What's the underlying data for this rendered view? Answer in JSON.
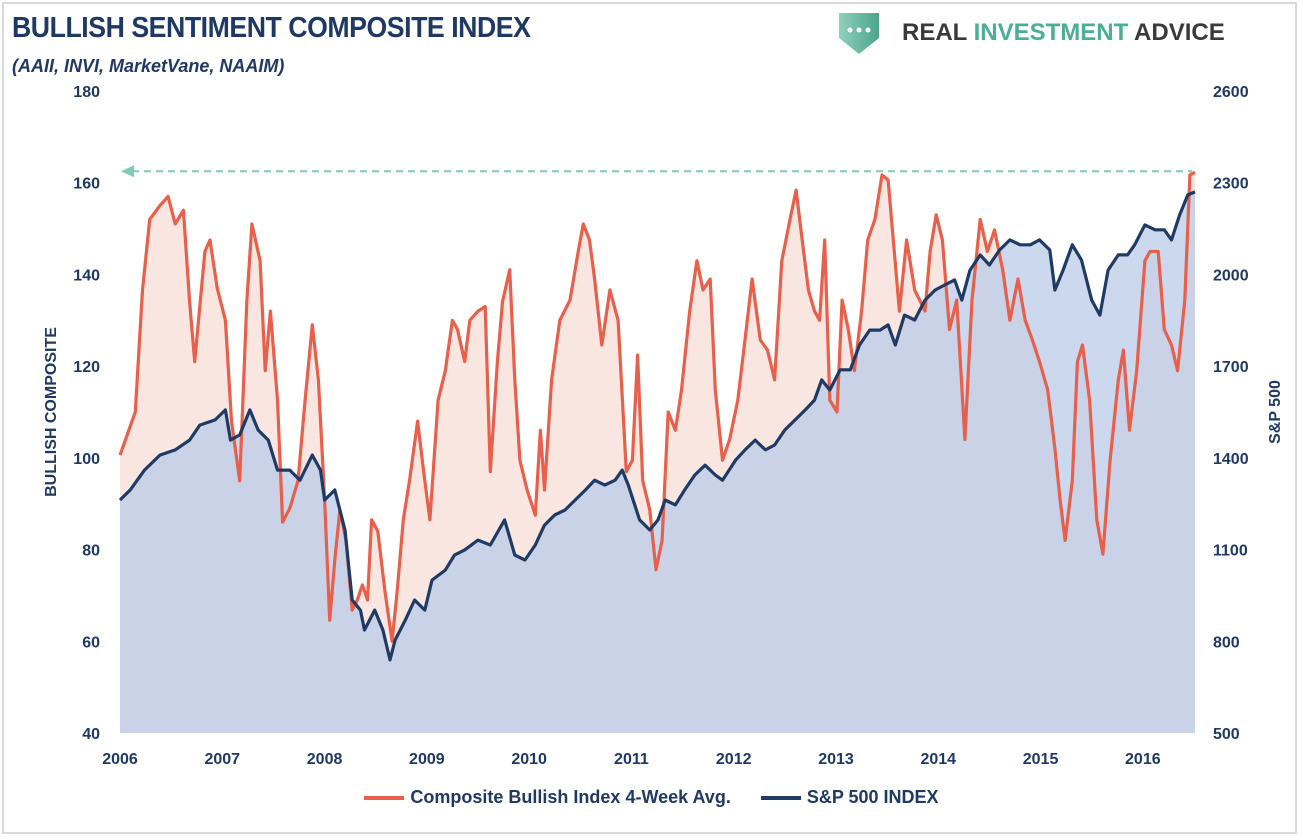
{
  "header": {
    "title": "BULLISH SENTIMENT COMPOSITE INDEX",
    "subtitle": "(AAII, INVI, MarketVane, NAAIM)"
  },
  "logo": {
    "word1": "REAL",
    "word2": "INVESTMENT",
    "word3": "ADVICE"
  },
  "colors": {
    "composite": "#e8604c",
    "spx": "#1f3b63",
    "reference": "#7fcbb3",
    "text": "#1f3864"
  },
  "chart_data": {
    "type": "line",
    "title": "BULLISH SENTIMENT COMPOSITE INDEX",
    "subtitle": "(AAII, INVI, MarketVane, NAAIM)",
    "xlabel": "",
    "ylabel": "BULLISH COMPOSITE",
    "y2label": "S&P 500",
    "xlim": [
      2006,
      2016.51
    ],
    "ylim": [
      40,
      180
    ],
    "y2lim": [
      500,
      2600
    ],
    "x_ticks": [
      "2006",
      "2007",
      "2008",
      "2009",
      "2010",
      "2011",
      "2012",
      "2013",
      "2014",
      "2015",
      "2016"
    ],
    "y_ticks": [
      "40",
      "60",
      "80",
      "100",
      "120",
      "140",
      "160",
      "180"
    ],
    "y2_ticks": [
      "500",
      "800",
      "1100",
      "1400",
      "1700",
      "2000",
      "2300",
      "2600"
    ],
    "grid": false,
    "legend_position": "bottom",
    "reference_line": {
      "value": 162.5,
      "style": "dashed arrow left",
      "axis": "left"
    },
    "series": [
      {
        "name": "Composite Bullish Index 4-Week Avg.",
        "axis": "left",
        "points": [
          [
            2006.0,
            100.6
          ],
          [
            2006.15,
            110
          ],
          [
            2006.22,
            136.6
          ],
          [
            2006.29,
            152
          ],
          [
            2006.39,
            155
          ],
          [
            2006.47,
            157
          ],
          [
            2006.54,
            151
          ],
          [
            2006.62,
            154
          ],
          [
            2006.68,
            134
          ],
          [
            2006.73,
            121
          ],
          [
            2006.83,
            145
          ],
          [
            2006.88,
            147.5
          ],
          [
            2006.95,
            137
          ],
          [
            2007.03,
            130
          ],
          [
            2007.09,
            108
          ],
          [
            2007.17,
            95
          ],
          [
            2007.24,
            134
          ],
          [
            2007.29,
            151
          ],
          [
            2007.37,
            143
          ],
          [
            2007.42,
            119
          ],
          [
            2007.47,
            132
          ],
          [
            2007.54,
            112.6
          ],
          [
            2007.59,
            86
          ],
          [
            2007.66,
            89
          ],
          [
            2007.74,
            95
          ],
          [
            2007.81,
            112.6
          ],
          [
            2007.88,
            129
          ],
          [
            2007.94,
            117
          ],
          [
            2008.0,
            91
          ],
          [
            2008.05,
            64.6
          ],
          [
            2008.1,
            77.7
          ],
          [
            2008.15,
            88.6
          ],
          [
            2008.21,
            82
          ],
          [
            2008.27,
            66.8
          ],
          [
            2008.32,
            69
          ],
          [
            2008.37,
            72.3
          ],
          [
            2008.42,
            69
          ],
          [
            2008.46,
            86.5
          ],
          [
            2008.52,
            84
          ],
          [
            2008.59,
            71
          ],
          [
            2008.66,
            60
          ],
          [
            2008.71,
            71
          ],
          [
            2008.77,
            86.5
          ],
          [
            2008.83,
            95
          ],
          [
            2008.91,
            108
          ],
          [
            2008.98,
            95
          ],
          [
            2009.03,
            86.5
          ],
          [
            2009.11,
            112.6
          ],
          [
            2009.18,
            119
          ],
          [
            2009.25,
            130
          ],
          [
            2009.3,
            128
          ],
          [
            2009.37,
            121
          ],
          [
            2009.42,
            130
          ],
          [
            2009.5,
            132
          ],
          [
            2009.57,
            133
          ],
          [
            2009.62,
            97
          ],
          [
            2009.69,
            121
          ],
          [
            2009.74,
            134
          ],
          [
            2009.81,
            141
          ],
          [
            2009.86,
            117
          ],
          [
            2009.91,
            99.5
          ],
          [
            2009.98,
            93
          ],
          [
            2010.06,
            87.5
          ],
          [
            2010.11,
            106
          ],
          [
            2010.15,
            93
          ],
          [
            2010.22,
            117
          ],
          [
            2010.3,
            130
          ],
          [
            2010.4,
            134.4
          ],
          [
            2010.48,
            145
          ],
          [
            2010.53,
            151
          ],
          [
            2010.59,
            147.5
          ],
          [
            2010.64,
            139
          ],
          [
            2010.71,
            124.6
          ],
          [
            2010.79,
            136.6
          ],
          [
            2010.87,
            130
          ],
          [
            2010.95,
            97
          ],
          [
            2011.01,
            99.5
          ],
          [
            2011.06,
            122.4
          ],
          [
            2011.11,
            95
          ],
          [
            2011.18,
            88.6
          ],
          [
            2011.24,
            75.6
          ],
          [
            2011.3,
            82
          ],
          [
            2011.36,
            110
          ],
          [
            2011.43,
            106
          ],
          [
            2011.49,
            114.8
          ],
          [
            2011.57,
            132
          ],
          [
            2011.64,
            143
          ],
          [
            2011.7,
            136.6
          ],
          [
            2011.77,
            139
          ],
          [
            2011.82,
            114.8
          ],
          [
            2011.89,
            99.5
          ],
          [
            2011.96,
            104
          ],
          [
            2012.04,
            112.6
          ],
          [
            2012.11,
            125.7
          ],
          [
            2012.18,
            139
          ],
          [
            2012.26,
            125.7
          ],
          [
            2012.33,
            123.5
          ],
          [
            2012.4,
            117
          ],
          [
            2012.47,
            143
          ],
          [
            2012.55,
            152
          ],
          [
            2012.61,
            158.4
          ],
          [
            2012.67,
            147.5
          ],
          [
            2012.73,
            136.6
          ],
          [
            2012.79,
            132
          ],
          [
            2012.84,
            130
          ],
          [
            2012.89,
            147.5
          ],
          [
            2012.94,
            112.6
          ],
          [
            2013.01,
            110
          ],
          [
            2013.06,
            134.4
          ],
          [
            2013.12,
            128
          ],
          [
            2013.18,
            119
          ],
          [
            2013.25,
            132
          ],
          [
            2013.31,
            147.5
          ],
          [
            2013.38,
            152
          ],
          [
            2013.45,
            161.7
          ],
          [
            2013.51,
            160.6
          ],
          [
            2013.56,
            147.5
          ],
          [
            2013.62,
            132
          ],
          [
            2013.69,
            147.5
          ],
          [
            2013.77,
            136.6
          ],
          [
            2013.87,
            132
          ],
          [
            2013.92,
            145
          ],
          [
            2013.98,
            153
          ],
          [
            2014.04,
            147.5
          ],
          [
            2014.11,
            128
          ],
          [
            2014.18,
            134.4
          ],
          [
            2014.26,
            104
          ],
          [
            2014.33,
            134.4
          ],
          [
            2014.41,
            152
          ],
          [
            2014.48,
            145
          ],
          [
            2014.55,
            149.7
          ],
          [
            2014.63,
            141
          ],
          [
            2014.7,
            130
          ],
          [
            2014.78,
            139
          ],
          [
            2014.85,
            130
          ],
          [
            2014.92,
            125.7
          ],
          [
            2014.99,
            121
          ],
          [
            2015.07,
            114.8
          ],
          [
            2015.14,
            102
          ],
          [
            2015.19,
            91
          ],
          [
            2015.24,
            82
          ],
          [
            2015.31,
            95
          ],
          [
            2015.36,
            121
          ],
          [
            2015.41,
            124.6
          ],
          [
            2015.48,
            112.6
          ],
          [
            2015.55,
            86.5
          ],
          [
            2015.61,
            79
          ],
          [
            2015.68,
            99.5
          ],
          [
            2015.76,
            117
          ],
          [
            2015.81,
            123.5
          ],
          [
            2015.87,
            106
          ],
          [
            2015.94,
            119
          ],
          [
            2016.02,
            143
          ],
          [
            2016.07,
            145
          ],
          [
            2016.15,
            145
          ],
          [
            2016.21,
            128
          ],
          [
            2016.28,
            124.6
          ],
          [
            2016.34,
            119
          ],
          [
            2016.41,
            134.4
          ],
          [
            2016.46,
            161.7
          ],
          [
            2016.51,
            162.3
          ]
        ]
      },
      {
        "name": "S&P 500 INDEX",
        "axis": "right",
        "points": [
          [
            2006.0,
            1262
          ],
          [
            2006.1,
            1295
          ],
          [
            2006.24,
            1360
          ],
          [
            2006.39,
            1409
          ],
          [
            2006.54,
            1426
          ],
          [
            2006.68,
            1458
          ],
          [
            2006.78,
            1507
          ],
          [
            2006.93,
            1524
          ],
          [
            2007.03,
            1557
          ],
          [
            2007.08,
            1458
          ],
          [
            2007.17,
            1475
          ],
          [
            2007.27,
            1557
          ],
          [
            2007.35,
            1491
          ],
          [
            2007.45,
            1458
          ],
          [
            2007.54,
            1360
          ],
          [
            2007.66,
            1360
          ],
          [
            2007.76,
            1327
          ],
          [
            2007.88,
            1409
          ],
          [
            2007.96,
            1360
          ],
          [
            2008.0,
            1262
          ],
          [
            2008.1,
            1295
          ],
          [
            2008.2,
            1164
          ],
          [
            2008.27,
            935
          ],
          [
            2008.35,
            902
          ],
          [
            2008.39,
            837
          ],
          [
            2008.49,
            902
          ],
          [
            2008.57,
            837
          ],
          [
            2008.64,
            739
          ],
          [
            2008.69,
            804
          ],
          [
            2008.79,
            870
          ],
          [
            2008.88,
            935
          ],
          [
            2008.98,
            902
          ],
          [
            2009.05,
            1000
          ],
          [
            2009.18,
            1033
          ],
          [
            2009.27,
            1082
          ],
          [
            2009.37,
            1099
          ],
          [
            2009.5,
            1131
          ],
          [
            2009.62,
            1115
          ],
          [
            2009.76,
            1197
          ],
          [
            2009.86,
            1082
          ],
          [
            2009.96,
            1066
          ],
          [
            2010.06,
            1115
          ],
          [
            2010.15,
            1180
          ],
          [
            2010.25,
            1213
          ],
          [
            2010.35,
            1229
          ],
          [
            2010.45,
            1262
          ],
          [
            2010.55,
            1295
          ],
          [
            2010.64,
            1327
          ],
          [
            2010.74,
            1311
          ],
          [
            2010.84,
            1327
          ],
          [
            2010.91,
            1360
          ],
          [
            2010.97,
            1311
          ],
          [
            2011.08,
            1197
          ],
          [
            2011.18,
            1164
          ],
          [
            2011.26,
            1197
          ],
          [
            2011.33,
            1262
          ],
          [
            2011.43,
            1246
          ],
          [
            2011.52,
            1295
          ],
          [
            2011.62,
            1344
          ],
          [
            2011.72,
            1376
          ],
          [
            2011.82,
            1344
          ],
          [
            2011.89,
            1327
          ],
          [
            2012.02,
            1393
          ],
          [
            2012.11,
            1426
          ],
          [
            2012.21,
            1458
          ],
          [
            2012.31,
            1426
          ],
          [
            2012.4,
            1442
          ],
          [
            2012.5,
            1491
          ],
          [
            2012.6,
            1524
          ],
          [
            2012.7,
            1557
          ],
          [
            2012.79,
            1589
          ],
          [
            2012.86,
            1655
          ],
          [
            2012.94,
            1622
          ],
          [
            2013.04,
            1688
          ],
          [
            2013.14,
            1688
          ],
          [
            2013.23,
            1769
          ],
          [
            2013.33,
            1818
          ],
          [
            2013.43,
            1818
          ],
          [
            2013.51,
            1835
          ],
          [
            2013.58,
            1769
          ],
          [
            2013.67,
            1867
          ],
          [
            2013.77,
            1851
          ],
          [
            2013.87,
            1916
          ],
          [
            2013.97,
            1949
          ],
          [
            2014.06,
            1965
          ],
          [
            2014.16,
            1982
          ],
          [
            2014.23,
            1916
          ],
          [
            2014.31,
            2014
          ],
          [
            2014.41,
            2064
          ],
          [
            2014.5,
            2031
          ],
          [
            2014.6,
            2080
          ],
          [
            2014.7,
            2113
          ],
          [
            2014.8,
            2097
          ],
          [
            2014.9,
            2097
          ],
          [
            2014.99,
            2113
          ],
          [
            2015.09,
            2080
          ],
          [
            2015.14,
            1949
          ],
          [
            2015.22,
            2014
          ],
          [
            2015.31,
            2097
          ],
          [
            2015.4,
            2047
          ],
          [
            2015.5,
            1916
          ],
          [
            2015.58,
            1867
          ],
          [
            2015.66,
            2014
          ],
          [
            2015.76,
            2064
          ],
          [
            2015.85,
            2064
          ],
          [
            2015.92,
            2097
          ],
          [
            2016.02,
            2162
          ],
          [
            2016.12,
            2146
          ],
          [
            2016.21,
            2146
          ],
          [
            2016.28,
            2113
          ],
          [
            2016.36,
            2195
          ],
          [
            2016.44,
            2260
          ],
          [
            2016.51,
            2270
          ]
        ]
      }
    ]
  }
}
